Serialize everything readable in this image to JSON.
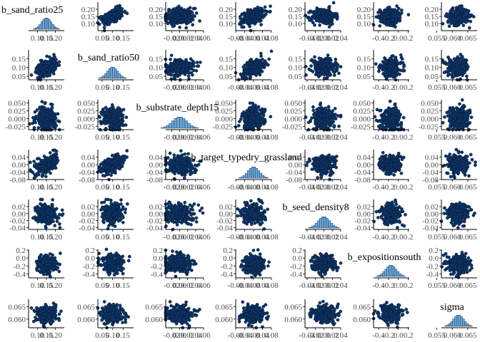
{
  "chart_data": {
    "type": "pairs",
    "description_source": "bayesian posterior pairs plot",
    "variables": [
      "b_sand_ratio25",
      "b_sand_ratio50",
      "b_substrate_depth15",
      "b_target_typedry_grassland",
      "b_seed_density8",
      "b_expositionsouth",
      "sigma"
    ],
    "diagonal": "histogram",
    "off_diagonal": "scatter",
    "ranges": [
      [
        0.05,
        0.25
      ],
      [
        0.03,
        0.2
      ],
      [
        -0.035,
        0.06
      ],
      [
        -0.08,
        0.08
      ],
      [
        -0.045,
        0.04
      ],
      [
        -0.5,
        0.22
      ],
      [
        0.0565,
        0.068
      ]
    ],
    "centers": [
      0.15,
      0.1,
      0.0,
      0.0,
      0.0,
      -0.15,
      0.062
    ],
    "spreads": [
      0.028,
      0.025,
      0.018,
      0.025,
      0.014,
      0.11,
      0.0017
    ],
    "y_ticks": [
      [
        "0.10",
        "0.15",
        "0.20"
      ],
      [
        "0.05",
        "0.10",
        "0.15"
      ],
      [
        "-0.025",
        "0.000",
        "0.025",
        "0.050"
      ],
      [
        "-0.08",
        "-0.04",
        "0.00",
        "0.04"
      ],
      [
        "-0.04",
        "-0.02",
        "0.00",
        "0.02"
      ],
      [
        "-0.4",
        "-0.2",
        "0.0",
        "0.2"
      ],
      [
        "0.060",
        "0.065"
      ]
    ],
    "y_tick_values": [
      [
        0.1,
        0.15,
        0.2
      ],
      [
        0.05,
        0.1,
        0.15
      ],
      [
        -0.025,
        0.0,
        0.025,
        0.05
      ],
      [
        -0.08,
        -0.04,
        0.0,
        0.04
      ],
      [
        -0.04,
        -0.02,
        0.0,
        0.02
      ],
      [
        -0.4,
        -0.2,
        0.0,
        0.2
      ],
      [
        0.06,
        0.065
      ]
    ],
    "x_ticks": [
      [
        "0.10",
        "0.15",
        "0.20"
      ],
      [
        "0.05",
        "0.10",
        "0.15"
      ],
      [
        "-0.02",
        "0.00",
        "0.02",
        "0.04",
        "0.06"
      ],
      [
        "-0.08",
        "-0.04",
        "0.00",
        "0.04",
        "0.08"
      ],
      [
        "-0.04",
        "-0.02",
        "0.00",
        "0.02",
        "0.04"
      ],
      [
        "-0.4",
        "-0.2",
        "0.0",
        "0.2"
      ],
      [
        "0.055",
        "0.060",
        "0.065"
      ]
    ],
    "x_tick_values": [
      [
        0.1,
        0.15,
        0.2
      ],
      [
        0.05,
        0.1,
        0.15
      ],
      [
        -0.02,
        0.0,
        0.02,
        0.04,
        0.06
      ],
      [
        -0.08,
        -0.04,
        0.0,
        0.04,
        0.08
      ],
      [
        -0.04,
        -0.02,
        0.0,
        0.02,
        0.04
      ],
      [
        -0.4,
        -0.2,
        0.0,
        0.2
      ],
      [
        0.055,
        0.06,
        0.065
      ]
    ],
    "correlations_with_first_two": {
      "b_sand_ratio25~b_sand_ratio50": 0.5,
      "b_sand_ratio25~b_target_typedry_grassland": 0.45,
      "b_sand_ratio50~b_target_typedry_grassland": 0.5
    },
    "colors": {
      "point_fill": "#0d3568",
      "point_edge": "#071a33",
      "hist_fill": "#6fa8d6",
      "hist_edge": "#163a66",
      "axis": "#000000",
      "tick_text": "#4d4d4d"
    }
  }
}
